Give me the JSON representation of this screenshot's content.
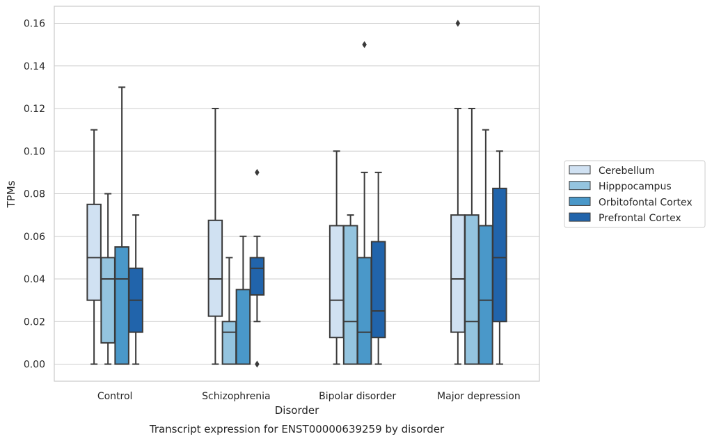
{
  "chart_data": {
    "type": "box",
    "caption": "Transcript expression for ENST00000639259 by disorder",
    "xlabel": "Disorder",
    "ylabel": "TPMs",
    "ylim": [
      -0.008,
      0.168
    ],
    "yticks": [
      0.0,
      0.02,
      0.04,
      0.06,
      0.08,
      0.1,
      0.12,
      0.14,
      0.16
    ],
    "ytick_labels": [
      "0.00",
      "0.02",
      "0.04",
      "0.06",
      "0.08",
      "0.10",
      "0.12",
      "0.14",
      "0.16"
    ],
    "categories": [
      "Control",
      "Schizophrenia",
      "Bipolar disorder",
      "Major depression"
    ],
    "grid": "horizontal",
    "legend_position": "right",
    "series": [
      {
        "name": "Cerebellum",
        "color": "#d0e1f2",
        "boxes": [
          {
            "low": 0.0,
            "q1": 0.03,
            "median": 0.05,
            "q3": 0.075,
            "high": 0.11,
            "outliers": []
          },
          {
            "low": 0.0,
            "q1": 0.0225,
            "median": 0.04,
            "q3": 0.0675,
            "high": 0.12,
            "outliers": []
          },
          {
            "low": 0.0,
            "q1": 0.0125,
            "median": 0.03,
            "q3": 0.065,
            "high": 0.1,
            "outliers": []
          },
          {
            "low": 0.0,
            "q1": 0.015,
            "median": 0.04,
            "q3": 0.07,
            "high": 0.12,
            "outliers": [
              0.16
            ]
          }
        ]
      },
      {
        "name": "Hipppocampus",
        "color": "#94c4df",
        "boxes": [
          {
            "low": 0.0,
            "q1": 0.01,
            "median": 0.04,
            "q3": 0.05,
            "high": 0.08,
            "outliers": []
          },
          {
            "low": 0.0,
            "q1": 0.0,
            "median": 0.015,
            "q3": 0.02,
            "high": 0.05,
            "outliers": []
          },
          {
            "low": 0.0,
            "q1": 0.0,
            "median": 0.02,
            "q3": 0.065,
            "high": 0.07,
            "outliers": []
          },
          {
            "low": 0.0,
            "q1": 0.0,
            "median": 0.02,
            "q3": 0.07,
            "high": 0.12,
            "outliers": []
          }
        ]
      },
      {
        "name": "Orbitofontal Cortex",
        "color": "#4a98c9",
        "boxes": [
          {
            "low": 0.0,
            "q1": 0.0,
            "median": 0.04,
            "q3": 0.055,
            "high": 0.13,
            "outliers": []
          },
          {
            "low": 0.0,
            "q1": 0.0,
            "median": 0.0,
            "q3": 0.035,
            "high": 0.06,
            "outliers": []
          },
          {
            "low": 0.0,
            "q1": 0.0,
            "median": 0.015,
            "q3": 0.05,
            "high": 0.09,
            "outliers": [
              0.15
            ]
          },
          {
            "low": 0.0,
            "q1": 0.0,
            "median": 0.03,
            "q3": 0.065,
            "high": 0.11,
            "outliers": []
          }
        ]
      },
      {
        "name": "Prefrontal Cortex",
        "color": "#2164ab",
        "boxes": [
          {
            "low": 0.0,
            "q1": 0.015,
            "median": 0.03,
            "q3": 0.045,
            "high": 0.07,
            "outliers": []
          },
          {
            "low": 0.02,
            "q1": 0.0325,
            "median": 0.045,
            "q3": 0.05,
            "high": 0.06,
            "outliers": [
              0.0,
              0.09
            ]
          },
          {
            "low": 0.0,
            "q1": 0.0125,
            "median": 0.025,
            "q3": 0.0575,
            "high": 0.09,
            "outliers": []
          },
          {
            "low": 0.0,
            "q1": 0.02,
            "median": 0.05,
            "q3": 0.0825,
            "high": 0.1,
            "outliers": []
          }
        ]
      }
    ]
  }
}
